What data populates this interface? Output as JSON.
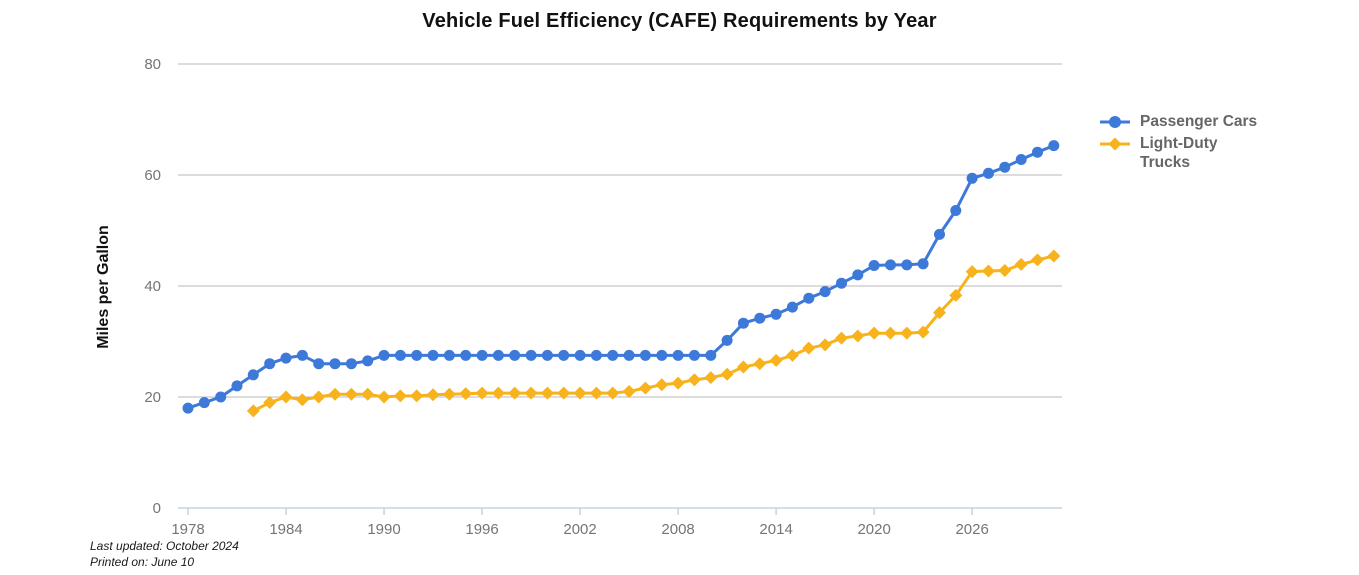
{
  "chart_data": {
    "type": "line",
    "title": "Vehicle Fuel Efficiency (CAFE) Requirements by Year",
    "xlabel": "",
    "ylabel": "Miles per Gallon",
    "ylim": [
      0,
      80
    ],
    "y_ticks": [
      0,
      20,
      40,
      60,
      80
    ],
    "x_ticks": [
      1978,
      1984,
      1990,
      1996,
      2002,
      2008,
      2014,
      2020,
      2026
    ],
    "x_range": [
      1978,
      2031.5
    ],
    "grid": "horizontal",
    "legend_position": "right",
    "colors": {
      "gridline": "#B9B9B9",
      "axis": "#C7D2DE",
      "tick_label": "#757575",
      "legend_text": "#666666",
      "title_text": "#111111"
    },
    "series": [
      {
        "name": "Light-Duty Trucks",
        "color": "#F8B31C",
        "marker": "diamond",
        "points": [
          [
            1982,
            17.5
          ],
          [
            1983,
            19.0
          ],
          [
            1984,
            20.0
          ],
          [
            1985,
            19.5
          ],
          [
            1986,
            20.0
          ],
          [
            1987,
            20.5
          ],
          [
            1988,
            20.5
          ],
          [
            1989,
            20.5
          ],
          [
            1990,
            20.0
          ],
          [
            1991,
            20.2
          ],
          [
            1992,
            20.2
          ],
          [
            1993,
            20.4
          ],
          [
            1994,
            20.5
          ],
          [
            1995,
            20.6
          ],
          [
            1996,
            20.7
          ],
          [
            1997,
            20.7
          ],
          [
            1998,
            20.7
          ],
          [
            1999,
            20.7
          ],
          [
            2000,
            20.7
          ],
          [
            2001,
            20.7
          ],
          [
            2002,
            20.7
          ],
          [
            2003,
            20.7
          ],
          [
            2004,
            20.7
          ],
          [
            2005,
            21.0
          ],
          [
            2006,
            21.6
          ],
          [
            2007,
            22.2
          ],
          [
            2008,
            22.5
          ],
          [
            2009,
            23.1
          ],
          [
            2010,
            23.5
          ],
          [
            2011,
            24.1
          ],
          [
            2012,
            25.4
          ],
          [
            2013,
            26.0
          ],
          [
            2014,
            26.6
          ],
          [
            2015,
            27.5
          ],
          [
            2016,
            28.8
          ],
          [
            2017,
            29.4
          ],
          [
            2018,
            30.6
          ],
          [
            2019,
            31.0
          ],
          [
            2020,
            31.5
          ],
          [
            2021,
            31.5
          ],
          [
            2022,
            31.5
          ],
          [
            2023,
            31.7
          ],
          [
            2024,
            35.2
          ],
          [
            2025,
            38.3
          ],
          [
            2026,
            42.6
          ],
          [
            2027,
            42.7
          ],
          [
            2028,
            42.8
          ],
          [
            2029,
            43.9
          ],
          [
            2030,
            44.7
          ],
          [
            2031,
            45.4
          ]
        ]
      },
      {
        "name": "Passenger Cars",
        "color": "#3D79D8",
        "marker": "circle",
        "points": [
          [
            1978,
            18.0
          ],
          [
            1979,
            19.0
          ],
          [
            1980,
            20.0
          ],
          [
            1981,
            22.0
          ],
          [
            1982,
            24.0
          ],
          [
            1983,
            26.0
          ],
          [
            1984,
            27.0
          ],
          [
            1985,
            27.5
          ],
          [
            1986,
            26.0
          ],
          [
            1987,
            26.0
          ],
          [
            1988,
            26.0
          ],
          [
            1989,
            26.5
          ],
          [
            1990,
            27.5
          ],
          [
            1991,
            27.5
          ],
          [
            1992,
            27.5
          ],
          [
            1993,
            27.5
          ],
          [
            1994,
            27.5
          ],
          [
            1995,
            27.5
          ],
          [
            1996,
            27.5
          ],
          [
            1997,
            27.5
          ],
          [
            1998,
            27.5
          ],
          [
            1999,
            27.5
          ],
          [
            2000,
            27.5
          ],
          [
            2001,
            27.5
          ],
          [
            2002,
            27.5
          ],
          [
            2003,
            27.5
          ],
          [
            2004,
            27.5
          ],
          [
            2005,
            27.5
          ],
          [
            2006,
            27.5
          ],
          [
            2007,
            27.5
          ],
          [
            2008,
            27.5
          ],
          [
            2009,
            27.5
          ],
          [
            2010,
            27.5
          ],
          [
            2011,
            30.2
          ],
          [
            2012,
            33.3
          ],
          [
            2013,
            34.2
          ],
          [
            2014,
            34.9
          ],
          [
            2015,
            36.2
          ],
          [
            2016,
            37.8
          ],
          [
            2017,
            39.0
          ],
          [
            2018,
            40.5
          ],
          [
            2019,
            42.0
          ],
          [
            2020,
            43.7
          ],
          [
            2021,
            43.8
          ],
          [
            2022,
            43.8
          ],
          [
            2023,
            44.0
          ],
          [
            2024,
            49.3
          ],
          [
            2025,
            53.6
          ],
          [
            2026,
            59.4
          ],
          [
            2027,
            60.3
          ],
          [
            2028,
            61.4
          ],
          [
            2029,
            62.8
          ],
          [
            2030,
            64.1
          ],
          [
            2031,
            65.3
          ]
        ]
      }
    ]
  },
  "footer": {
    "line1": "Last updated: October 2024",
    "line2": "Printed on: June 10"
  }
}
